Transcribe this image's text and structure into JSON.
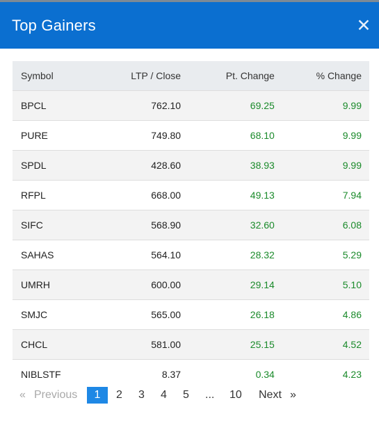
{
  "header": {
    "title": "Top Gainers",
    "close_glyph": "✕",
    "close_icon": "close-icon",
    "background_color": "#0b6fd0"
  },
  "table": {
    "columns": [
      "Symbol",
      "LTP / Close",
      "Pt. Change",
      "% Change"
    ],
    "rows": [
      {
        "symbol": "BPCL",
        "ltp": "762.10",
        "pt_change": "69.25",
        "pct_change": "9.99"
      },
      {
        "symbol": "PURE",
        "ltp": "749.80",
        "pt_change": "68.10",
        "pct_change": "9.99"
      },
      {
        "symbol": "SPDL",
        "ltp": "428.60",
        "pt_change": "38.93",
        "pct_change": "9.99"
      },
      {
        "symbol": "RFPL",
        "ltp": "668.00",
        "pt_change": "49.13",
        "pct_change": "7.94"
      },
      {
        "symbol": "SIFC",
        "ltp": "568.90",
        "pt_change": "32.60",
        "pct_change": "6.08"
      },
      {
        "symbol": "SAHAS",
        "ltp": "564.10",
        "pt_change": "28.32",
        "pct_change": "5.29"
      },
      {
        "symbol": "UMRH",
        "ltp": "600.00",
        "pt_change": "29.14",
        "pct_change": "5.10"
      },
      {
        "symbol": "SMJC",
        "ltp": "565.00",
        "pt_change": "26.18",
        "pct_change": "4.86"
      },
      {
        "symbol": "CHCL",
        "ltp": "581.00",
        "pt_change": "25.15",
        "pct_change": "4.52"
      },
      {
        "symbol": "NIBLSTF",
        "ltp": "8.37",
        "pt_change": "0.34",
        "pct_change": "4.23"
      }
    ],
    "positive_color": "#1a8a2a"
  },
  "pagination": {
    "prev_arrow": "«",
    "prev_label": "Previous",
    "pages": [
      "1",
      "2",
      "3",
      "4",
      "5"
    ],
    "current_page": "1",
    "ellipsis": "...",
    "last_page": "10",
    "next_label": "Next",
    "next_arrow": "»",
    "accent_color": "#1e88e5"
  }
}
